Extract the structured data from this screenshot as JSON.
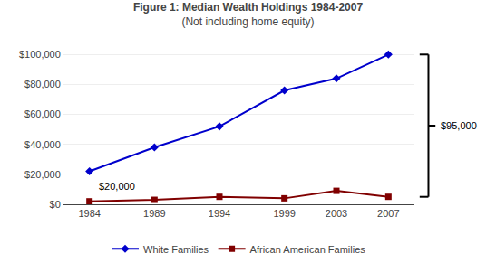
{
  "chart_data": {
    "type": "line",
    "title": "Figure 1: Median Wealth Holdings 1984-2007",
    "subtitle": "(Not including home equity)",
    "x": [
      1984,
      1989,
      1994,
      1999,
      2003,
      2007
    ],
    "series": [
      {
        "name": "White Families",
        "color": "#0000CC",
        "marker": "diamond",
        "values": [
          22000,
          38000,
          52000,
          76000,
          84000,
          100000
        ]
      },
      {
        "name": "African American Families",
        "color": "#800000",
        "marker": "square",
        "values": [
          2000,
          3000,
          5000,
          4000,
          9000,
          5000
        ]
      }
    ],
    "annotations": [
      "$20,000",
      "$95,000"
    ],
    "xlim": [
      1982,
      2009
    ],
    "xticks": [
      1984,
      1989,
      1994,
      1999,
      2003,
      2007
    ],
    "ylim": [
      0,
      105000
    ],
    "yticks": [
      0,
      {
        "value": 20000,
        "label": "$20,000"
      },
      {
        "value": 40000,
        "label": "$40,000"
      },
      {
        "value": 60000,
        "label": "$60,000"
      },
      {
        "value": 80000,
        "label": "$80,000"
      },
      {
        "value": 100000,
        "label": "$100,000"
      }
    ],
    "yticks_first_label": "$0",
    "grid": "y",
    "legend": "bottom"
  }
}
